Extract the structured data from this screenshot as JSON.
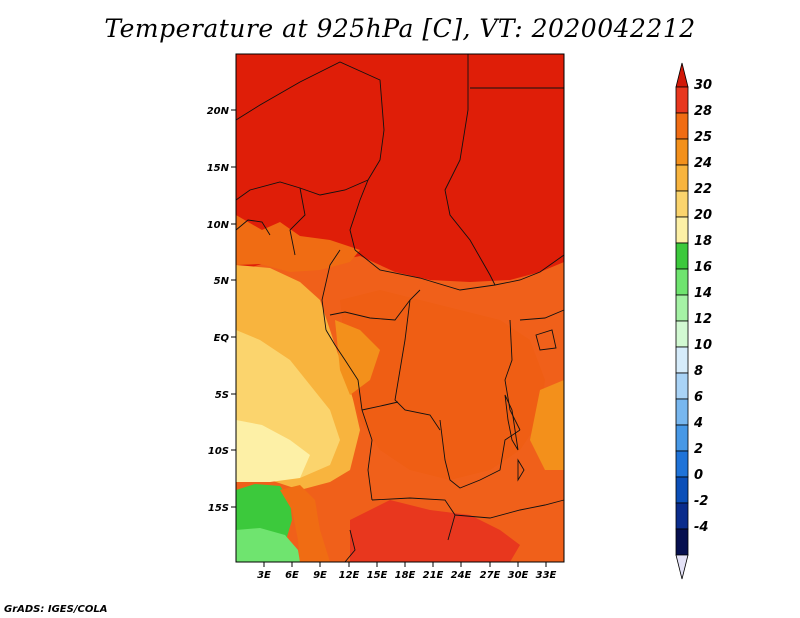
{
  "title": "Temperature at 925hPa [C], VT: 2020042212",
  "footer": "GrADS: IGES/COLA",
  "map": {
    "lat_labels": [
      "20N",
      "15N",
      "10N",
      "5N",
      "EQ",
      "5S",
      "10S",
      "15S"
    ],
    "lon_labels": [
      "3E",
      "6E",
      "9E",
      "12E",
      "15E",
      "18E",
      "21E",
      "24E",
      "27E",
      "30E",
      "33E"
    ],
    "region": "Central Africa"
  },
  "colorbar": {
    "labels": [
      "30",
      "28",
      "25",
      "24",
      "22",
      "20",
      "18",
      "16",
      "14",
      "12",
      "10",
      "8",
      "6",
      "4",
      "2",
      "0",
      "-2",
      "-4"
    ],
    "colors": [
      "#e8371e",
      "#f06c13",
      "#f3901b",
      "#f8b43e",
      "#fbd46d",
      "#fdf0a6",
      "#3cc93c",
      "#6fe46f",
      "#a5f2a5",
      "#d2f9d2",
      "#d6ecfb",
      "#a9d3f6",
      "#78b7ef",
      "#4798e6",
      "#1f73d8",
      "#0b4fb8",
      "#0a2c8c",
      "#060f4f"
    ],
    "top_arrow_color": "#d11808",
    "bottom_arrow_color": "#e4e2f7"
  }
}
